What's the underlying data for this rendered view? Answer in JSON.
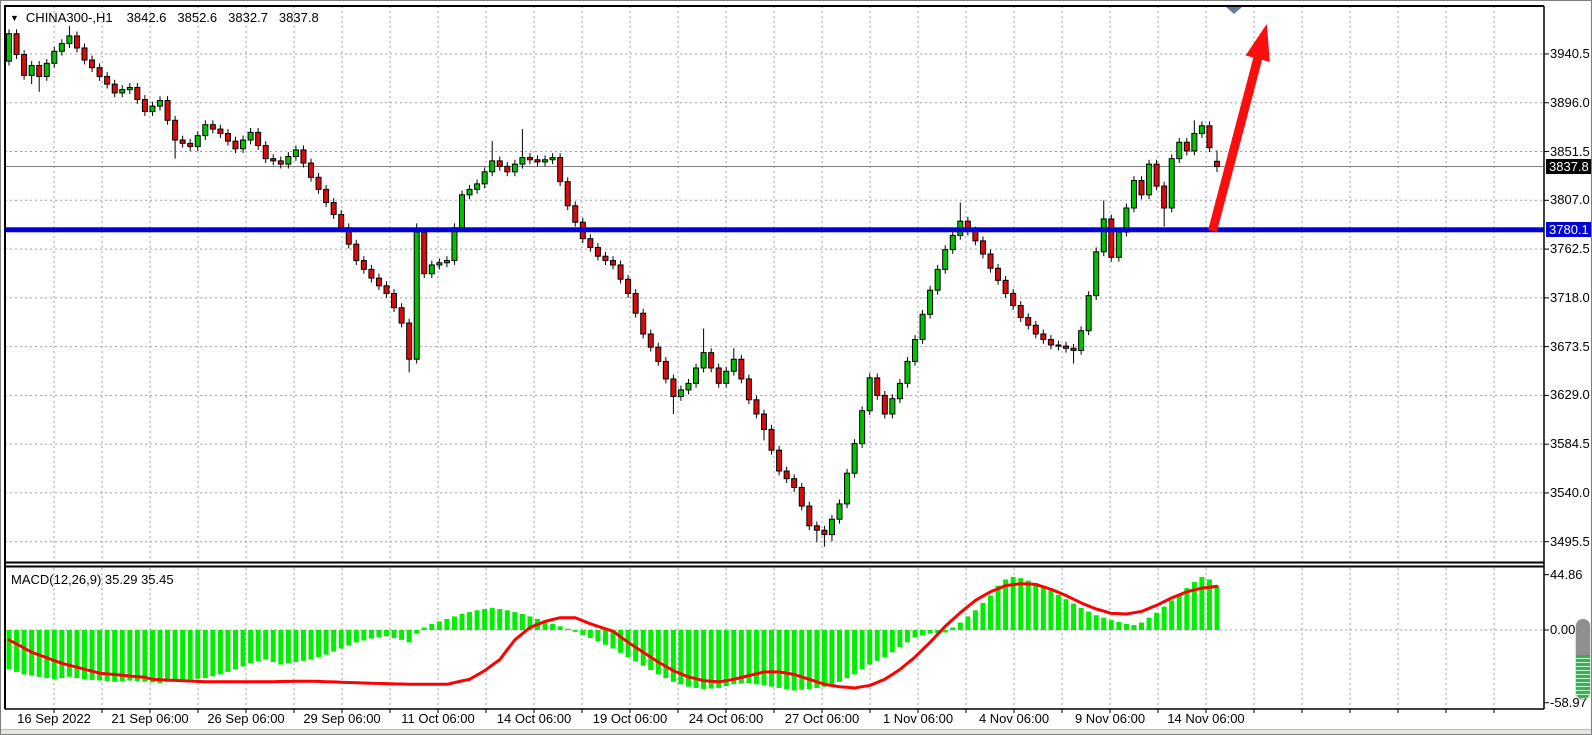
{
  "quote_bar": {
    "dropdown_icon": "▼",
    "symbol": "CHINA300-,H1",
    "values": {
      "open": "3842.6",
      "high": "3852.6",
      "low": "3832.7",
      "close": "3837.8"
    }
  },
  "macd_title": "MACD(12,26,9) 35.29 35.45",
  "price_axis": {
    "current_badge": {
      "text": "3837.8",
      "bg": "#000000"
    },
    "line_badge": {
      "text": "3780.1",
      "bg": "#0000d4"
    }
  },
  "chart_data": {
    "type": "candlestick+macd",
    "symbol": "CHINA300-,H1",
    "timeframe": "H1",
    "price_axis_ticks": [
      3940.5,
      3896.0,
      3851.5,
      3807.0,
      3762.5,
      3718.0,
      3673.5,
      3629.0,
      3584.5,
      3540.0,
      3495.5
    ],
    "time_labels": [
      "16 Sep 2022",
      "21 Sep 06:00",
      "26 Sep 06:00",
      "29 Sep 06:00",
      "11 Oct 06:00",
      "14 Oct 06:00",
      "19 Oct 06:00",
      "24 Oct 06:00",
      "27 Oct 06:00",
      "1 Nov 06:00",
      "4 Nov 06:00",
      "9 Nov 06:00",
      "14 Nov 06:00"
    ],
    "grid": {
      "on": true,
      "color": "#97a1ab"
    },
    "colors": {
      "up": "#00c300",
      "down": "#dc0a0a",
      "outline": "#000000",
      "wick": "#000000",
      "macd_hist": "#00ef00",
      "macd_signal": "#ff0000",
      "hline": "#0000d4",
      "close_line": "#7f7f7f",
      "arrow": "#fd0e0e",
      "frame": "#000000",
      "shift_marker": "#6a7a94"
    },
    "close_line": {
      "price": 3837.8
    },
    "horizontal_line": {
      "price": 3780.1
    },
    "annotation_arrow": {
      "from_index": 159.4,
      "from_price": 3779,
      "to_index": 166.6,
      "to_price": 3968
    },
    "candles": [
      [
        3934,
        3963,
        3930,
        3959
      ],
      [
        3959,
        3963,
        3936,
        3940
      ],
      [
        3940,
        3944,
        3917,
        3921
      ],
      [
        3921,
        3934,
        3913,
        3930
      ],
      [
        3930,
        3934,
        3906,
        3920
      ],
      [
        3920,
        3936,
        3916,
        3932
      ],
      [
        3932,
        3947,
        3928,
        3943
      ],
      [
        3943,
        3954,
        3939,
        3950
      ],
      [
        3950,
        3966,
        3946,
        3957
      ],
      [
        3957,
        3961,
        3942,
        3946
      ],
      [
        3946,
        3950,
        3931,
        3935
      ],
      [
        3935,
        3939,
        3924,
        3928
      ],
      [
        3928,
        3932,
        3916,
        3920
      ],
      [
        3920,
        3924,
        3909,
        3913
      ],
      [
        3913,
        3917,
        3901,
        3905
      ],
      [
        3905,
        3912,
        3901,
        3908
      ],
      [
        3908,
        3914,
        3904,
        3910
      ],
      [
        3910,
        3914,
        3895,
        3899
      ],
      [
        3899,
        3903,
        3884,
        3888
      ],
      [
        3888,
        3897,
        3884,
        3893
      ],
      [
        3893,
        3902,
        3889,
        3898
      ],
      [
        3898,
        3902,
        3876,
        3880
      ],
      [
        3880,
        3884,
        3845,
        3862
      ],
      [
        3862,
        3866,
        3855,
        3859
      ],
      [
        3859,
        3863,
        3852,
        3856
      ],
      [
        3856,
        3870,
        3852,
        3866
      ],
      [
        3866,
        3880,
        3862,
        3876
      ],
      [
        3876,
        3880,
        3868,
        3872
      ],
      [
        3872,
        3876,
        3864,
        3868
      ],
      [
        3868,
        3872,
        3857,
        3861
      ],
      [
        3861,
        3865,
        3850,
        3854
      ],
      [
        3854,
        3866,
        3850,
        3862
      ],
      [
        3862,
        3873,
        3858,
        3869
      ],
      [
        3869,
        3873,
        3853,
        3857
      ],
      [
        3857,
        3861,
        3841,
        3845
      ],
      [
        3845,
        3849,
        3839,
        3843
      ],
      [
        3843,
        3847,
        3836,
        3840
      ],
      [
        3840,
        3851,
        3836,
        3847
      ],
      [
        3847,
        3857,
        3843,
        3853
      ],
      [
        3853,
        3857,
        3837,
        3841
      ],
      [
        3841,
        3845,
        3824,
        3828
      ],
      [
        3828,
        3832,
        3813,
        3817
      ],
      [
        3817,
        3821,
        3801,
        3805
      ],
      [
        3805,
        3809,
        3790,
        3794
      ],
      [
        3794,
        3798,
        3778,
        3782
      ],
      [
        3782,
        3786,
        3763,
        3767
      ],
      [
        3767,
        3771,
        3748,
        3752
      ],
      [
        3752,
        3756,
        3740,
        3744
      ],
      [
        3744,
        3748,
        3732,
        3736
      ],
      [
        3736,
        3740,
        3725,
        3729
      ],
      [
        3729,
        3733,
        3718,
        3722
      ],
      [
        3722,
        3726,
        3705,
        3709
      ],
      [
        3709,
        3713,
        3691,
        3695
      ],
      [
        3695,
        3699,
        3650,
        3662
      ],
      [
        3662,
        3786,
        3658,
        3778
      ],
      [
        3778,
        3782,
        3736,
        3740
      ],
      [
        3740,
        3752,
        3736,
        3748
      ],
      [
        3748,
        3754,
        3744,
        3750
      ],
      [
        3750,
        3756,
        3746,
        3752
      ],
      [
        3752,
        3786,
        3748,
        3782
      ],
      [
        3782,
        3816,
        3778,
        3812
      ],
      [
        3812,
        3821,
        3808,
        3817
      ],
      [
        3817,
        3826,
        3813,
        3822
      ],
      [
        3822,
        3837,
        3818,
        3833
      ],
      [
        3833,
        3861,
        3829,
        3843
      ],
      [
        3843,
        3847,
        3834,
        3838
      ],
      [
        3838,
        3842,
        3829,
        3833
      ],
      [
        3833,
        3844,
        3829,
        3840
      ],
      [
        3840,
        3872,
        3836,
        3846
      ],
      [
        3846,
        3850,
        3840,
        3844
      ],
      [
        3844,
        3848,
        3838,
        3842
      ],
      [
        3842,
        3848,
        3838,
        3844
      ],
      [
        3844,
        3850,
        3840,
        3846
      ],
      [
        3846,
        3850,
        3820,
        3824
      ],
      [
        3824,
        3828,
        3798,
        3802
      ],
      [
        3802,
        3806,
        3783,
        3787
      ],
      [
        3787,
        3791,
        3768,
        3772
      ],
      [
        3772,
        3776,
        3760,
        3764
      ],
      [
        3764,
        3768,
        3752,
        3756
      ],
      [
        3756,
        3760,
        3748,
        3752
      ],
      [
        3752,
        3756,
        3744,
        3748
      ],
      [
        3748,
        3752,
        3731,
        3735
      ],
      [
        3735,
        3739,
        3718,
        3722
      ],
      [
        3722,
        3726,
        3700,
        3704
      ],
      [
        3704,
        3708,
        3681,
        3685
      ],
      [
        3685,
        3689,
        3669,
        3673
      ],
      [
        3673,
        3677,
        3656,
        3660
      ],
      [
        3660,
        3664,
        3640,
        3644
      ],
      [
        3644,
        3648,
        3612,
        3628
      ],
      [
        3628,
        3638,
        3624,
        3634
      ],
      [
        3634,
        3644,
        3630,
        3640
      ],
      [
        3640,
        3658,
        3636,
        3654
      ],
      [
        3654,
        3690,
        3650,
        3668
      ],
      [
        3668,
        3672,
        3650,
        3654
      ],
      [
        3654,
        3658,
        3636,
        3640
      ],
      [
        3640,
        3655,
        3636,
        3651
      ],
      [
        3651,
        3672,
        3647,
        3662
      ],
      [
        3662,
        3666,
        3640,
        3644
      ],
      [
        3644,
        3648,
        3621,
        3625
      ],
      [
        3625,
        3629,
        3608,
        3612
      ],
      [
        3612,
        3616,
        3588,
        3598
      ],
      [
        3598,
        3602,
        3575,
        3579
      ],
      [
        3579,
        3583,
        3556,
        3560
      ],
      [
        3560,
        3564,
        3549,
        3553
      ],
      [
        3553,
        3557,
        3541,
        3545
      ],
      [
        3545,
        3549,
        3524,
        3528
      ],
      [
        3528,
        3532,
        3506,
        3510
      ],
      [
        3510,
        3514,
        3495,
        3506
      ],
      [
        3506,
        3510,
        3491,
        3502
      ],
      [
        3502,
        3520,
        3496,
        3516
      ],
      [
        3516,
        3534,
        3512,
        3530
      ],
      [
        3530,
        3562,
        3526,
        3558
      ],
      [
        3558,
        3589,
        3554,
        3585
      ],
      [
        3585,
        3619,
        3581,
        3615
      ],
      [
        3615,
        3649,
        3611,
        3645
      ],
      [
        3645,
        3649,
        3625,
        3629
      ],
      [
        3629,
        3633,
        3608,
        3612
      ],
      [
        3612,
        3630,
        3608,
        3626
      ],
      [
        3626,
        3644,
        3622,
        3640
      ],
      [
        3640,
        3664,
        3636,
        3660
      ],
      [
        3660,
        3684,
        3656,
        3680
      ],
      [
        3680,
        3707,
        3676,
        3703
      ],
      [
        3703,
        3729,
        3699,
        3725
      ],
      [
        3725,
        3748,
        3721,
        3744
      ],
      [
        3744,
        3766,
        3740,
        3762
      ],
      [
        3762,
        3779,
        3758,
        3775
      ],
      [
        3775,
        3805,
        3771,
        3788
      ],
      [
        3788,
        3792,
        3775,
        3779
      ],
      [
        3779,
        3783,
        3766,
        3770
      ],
      [
        3770,
        3774,
        3754,
        3758
      ],
      [
        3758,
        3762,
        3741,
        3745
      ],
      [
        3745,
        3749,
        3730,
        3734
      ],
      [
        3734,
        3738,
        3718,
        3722
      ],
      [
        3722,
        3726,
        3707,
        3711
      ],
      [
        3711,
        3715,
        3696,
        3700
      ],
      [
        3700,
        3704,
        3689,
        3693
      ],
      [
        3693,
        3697,
        3681,
        3685
      ],
      [
        3685,
        3689,
        3676,
        3680
      ],
      [
        3680,
        3684,
        3671,
        3675
      ],
      [
        3675,
        3679,
        3670,
        3674
      ],
      [
        3674,
        3678,
        3668,
        3672
      ],
      [
        3672,
        3676,
        3658,
        3670
      ],
      [
        3670,
        3692,
        3666,
        3688
      ],
      [
        3688,
        3724,
        3684,
        3720
      ],
      [
        3720,
        3764,
        3716,
        3760
      ],
      [
        3760,
        3807,
        3756,
        3790
      ],
      [
        3790,
        3794,
        3751,
        3755
      ],
      [
        3755,
        3782,
        3751,
        3778
      ],
      [
        3778,
        3804,
        3774,
        3800
      ],
      [
        3800,
        3829,
        3796,
        3825
      ],
      [
        3825,
        3829,
        3808,
        3812
      ],
      [
        3812,
        3844,
        3808,
        3840
      ],
      [
        3840,
        3844,
        3816,
        3820
      ],
      [
        3820,
        3824,
        3783,
        3800
      ],
      [
        3800,
        3849,
        3796,
        3845
      ],
      [
        3845,
        3864,
        3841,
        3860
      ],
      [
        3860,
        3864,
        3848,
        3852
      ],
      [
        3852,
        3880,
        3848,
        3868
      ],
      [
        3868,
        3879,
        3864,
        3875
      ],
      [
        3875,
        3879,
        3851,
        3855
      ],
      [
        3842.6,
        3852.6,
        3832.7,
        3837.8
      ]
    ],
    "macd": {
      "label": "MACD(12,26,9)",
      "main_value": 35.29,
      "signal_value": 35.45,
      "axis_ticks": [
        44.86,
        0.0,
        -58.97
      ],
      "histogram": [
        -32,
        -34,
        -36,
        -37,
        -38,
        -39,
        -40,
        -39,
        -38,
        -39,
        -40,
        -40.5,
        -41,
        -41.5,
        -42,
        -41.5,
        -41,
        -41.5,
        -42,
        -42.5,
        -43,
        -42,
        -41,
        -40.5,
        -40,
        -39.5,
        -39,
        -37.5,
        -36,
        -34,
        -32,
        -29.5,
        -27,
        -25.5,
        -24,
        -26,
        -28,
        -27,
        -26,
        -25,
        -24,
        -22,
        -20,
        -17.5,
        -15,
        -12.5,
        -10,
        -8.5,
        -7,
        -6,
        -5,
        -6.5,
        -8,
        -10,
        -3,
        2,
        5,
        7,
        9,
        11,
        13,
        14.5,
        16,
        17,
        18,
        17,
        16,
        14.5,
        13,
        11,
        9,
        7,
        5,
        3,
        1,
        -1.5,
        -4,
        -6.5,
        -9,
        -12,
        -15,
        -18.5,
        -22,
        -25.5,
        -29,
        -32.5,
        -36,
        -39,
        -42,
        -44,
        -46,
        -47,
        -48,
        -47.5,
        -47,
        -45.5,
        -44,
        -43.5,
        -43,
        -44,
        -45,
        -46,
        -47,
        -48,
        -49,
        -48.5,
        -48,
        -47,
        -46,
        -44,
        -42,
        -39,
        -36,
        -32,
        -28,
        -25,
        -22,
        -18,
        -14,
        -10,
        -6,
        -4.5,
        -3,
        -2.5,
        -2,
        2,
        6,
        11,
        16,
        22,
        28,
        36,
        41,
        43,
        42,
        40,
        38,
        35,
        32,
        28.5,
        25,
        21.5,
        18,
        15,
        12,
        10,
        8,
        6.5,
        5,
        4,
        6,
        10,
        14,
        19,
        24,
        29,
        34,
        39,
        43,
        41,
        35.29
      ],
      "signal": [
        -8,
        -11.3,
        -14.7,
        -18,
        -20.3,
        -22.5,
        -24.8,
        -27,
        -28.6,
        -30.2,
        -31.8,
        -33.4,
        -35,
        -35.6,
        -36.1,
        -36.7,
        -37.3,
        -37.9,
        -38.4,
        -40,
        -40.3,
        -40.6,
        -40.9,
        -41.1,
        -41.4,
        -41.7,
        -42,
        -42,
        -42,
        -42,
        -42,
        -42,
        -42,
        -42,
        -41.9,
        -41.9,
        -41.8,
        -41.7,
        -41.6,
        -41.6,
        -41.5,
        -41.7,
        -41.9,
        -42.1,
        -42.4,
        -42.6,
        -42.8,
        -43,
        -43.2,
        -43.3,
        -43.5,
        -43.7,
        -43.8,
        -44,
        -44,
        -44,
        -44,
        -44,
        -44,
        -42.7,
        -41.3,
        -40,
        -36.5,
        -33,
        -28.5,
        -24,
        -16,
        -8,
        -3,
        2,
        4.5,
        7,
        8.5,
        10,
        10,
        10,
        7.5,
        5,
        3,
        1,
        -1,
        -5.5,
        -10,
        -14,
        -18,
        -22,
        -26,
        -29.5,
        -33,
        -35.5,
        -38,
        -39.5,
        -41,
        -41.5,
        -42,
        -41,
        -40,
        -38.5,
        -37,
        -35.5,
        -34,
        -34,
        -34,
        -35,
        -36,
        -38,
        -40,
        -42,
        -44,
        -45,
        -46,
        -46.5,
        -47,
        -46,
        -45,
        -42.5,
        -40,
        -36,
        -32,
        -27,
        -22,
        -16,
        -10,
        -3.5,
        3,
        8.5,
        14,
        19,
        24,
        27.5,
        31,
        33.5,
        36,
        36.8,
        37.5,
        37.3,
        37,
        35,
        33,
        30.5,
        28,
        25,
        22,
        19.5,
        17,
        15.3,
        13.5,
        13.3,
        13,
        14,
        15,
        17.5,
        20,
        23,
        26,
        28.5,
        31,
        32.5,
        34,
        34.7,
        35.45
      ]
    }
  },
  "macd_axis_labels": [
    "44.86",
    "0.00",
    "-58.97"
  ]
}
